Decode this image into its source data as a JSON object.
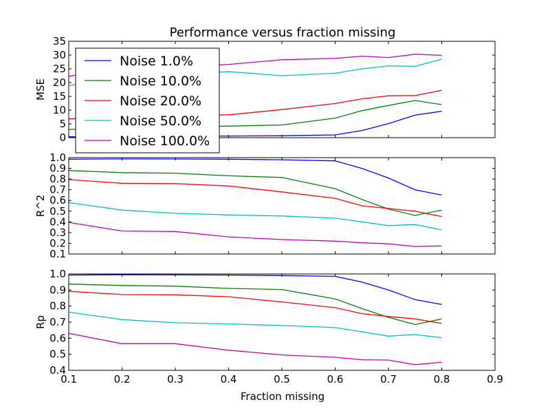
{
  "chart_data": {
    "type": "line",
    "title": "Performance versus fraction missing",
    "xlabel": "Fraction missing",
    "xlim": [
      0.1,
      0.9
    ],
    "xticks": [
      0.1,
      0.2,
      0.3,
      0.4,
      0.5,
      0.6,
      0.7,
      0.8,
      0.9
    ],
    "x": [
      0.1,
      0.2,
      0.3,
      0.4,
      0.5,
      0.6,
      0.65,
      0.7,
      0.75,
      0.8
    ],
    "legend": {
      "location": "upper-left",
      "panel": "MSE"
    },
    "colors": {
      "Noise 1.0%": "#0000ff",
      "Noise 10.0%": "#008000",
      "Noise 20.0%": "#ff0000",
      "Noise 50.0%": "#00bfbf",
      "Noise 100.0%": "#bf00bf"
    },
    "panels": [
      {
        "ylabel": "MSE",
        "ylim": [
          0,
          35
        ],
        "yticks": [
          0,
          5,
          10,
          15,
          20,
          25,
          30,
          35
        ],
        "show_xticklabels": false,
        "series": [
          {
            "name": "Noise 1.0%",
            "values": [
              0.3,
              0.4,
              0.5,
              0.6,
              0.7,
              1.0,
              2.6,
              5.1,
              8.2,
              9.6
            ]
          },
          {
            "name": "Noise 10.0%",
            "values": [
              3.0,
              3.4,
              3.8,
              4.2,
              4.6,
              7.1,
              9.8,
              11.7,
              13.5,
              12.0
            ]
          },
          {
            "name": "Noise 20.0%",
            "values": [
              6.8,
              7.6,
              7.9,
              8.3,
              10.2,
              12.4,
              14.1,
              15.2,
              15.3,
              17.2
            ]
          },
          {
            "name": "Noise 50.0%",
            "values": [
              18.9,
              21.9,
              22.8,
              24.0,
              22.5,
              23.4,
              25.0,
              26.1,
              25.9,
              28.5
            ]
          },
          {
            "name": "Noise 100.0%",
            "values": [
              22.3,
              25.1,
              25.7,
              26.6,
              28.3,
              28.8,
              29.6,
              29.1,
              30.3,
              29.9
            ]
          }
        ]
      },
      {
        "ylabel": "R^2",
        "ylim": [
          0.1,
          1.0
        ],
        "yticks": [
          0.1,
          0.2,
          0.3,
          0.4,
          0.5,
          0.6,
          0.7,
          0.8,
          0.9,
          1.0
        ],
        "show_xticklabels": false,
        "series": [
          {
            "name": "Noise 1.0%",
            "values": [
              0.985,
              0.988,
              0.987,
              0.985,
              0.98,
              0.97,
              0.9,
              0.81,
              0.7,
              0.65
            ]
          },
          {
            "name": "Noise 10.0%",
            "values": [
              0.88,
              0.86,
              0.855,
              0.83,
              0.815,
              0.71,
              0.61,
              0.52,
              0.46,
              0.51
            ]
          },
          {
            "name": "Noise 20.0%",
            "values": [
              0.795,
              0.76,
              0.757,
              0.735,
              0.68,
              0.62,
              0.55,
              0.525,
              0.5,
              0.45
            ]
          },
          {
            "name": "Noise 50.0%",
            "values": [
              0.58,
              0.51,
              0.48,
              0.465,
              0.455,
              0.435,
              0.4,
              0.365,
              0.375,
              0.325
            ]
          },
          {
            "name": "Noise 100.0%",
            "values": [
              0.395,
              0.315,
              0.31,
              0.26,
              0.235,
              0.22,
              0.205,
              0.195,
              0.17,
              0.175
            ]
          }
        ]
      },
      {
        "ylabel": "Rp",
        "ylim": [
          0.4,
          1.0
        ],
        "yticks": [
          0.4,
          0.5,
          0.6,
          0.7,
          0.8,
          0.9,
          1.0
        ],
        "show_xticklabels": true,
        "series": [
          {
            "name": "Noise 1.0%",
            "values": [
              0.993,
              0.995,
              0.994,
              0.993,
              0.99,
              0.985,
              0.95,
              0.9,
              0.84,
              0.81
            ]
          },
          {
            "name": "Noise 10.0%",
            "values": [
              0.937,
              0.928,
              0.924,
              0.91,
              0.903,
              0.845,
              0.785,
              0.73,
              0.685,
              0.72
            ]
          },
          {
            "name": "Noise 20.0%",
            "values": [
              0.892,
              0.872,
              0.87,
              0.858,
              0.826,
              0.79,
              0.753,
              0.735,
              0.72,
              0.692
            ]
          },
          {
            "name": "Noise 50.0%",
            "values": [
              0.762,
              0.716,
              0.696,
              0.689,
              0.679,
              0.666,
              0.64,
              0.613,
              0.623,
              0.603
            ]
          },
          {
            "name": "Noise 100.0%",
            "values": [
              0.63,
              0.566,
              0.566,
              0.525,
              0.496,
              0.481,
              0.466,
              0.464,
              0.435,
              0.45
            ]
          }
        ]
      }
    ]
  }
}
